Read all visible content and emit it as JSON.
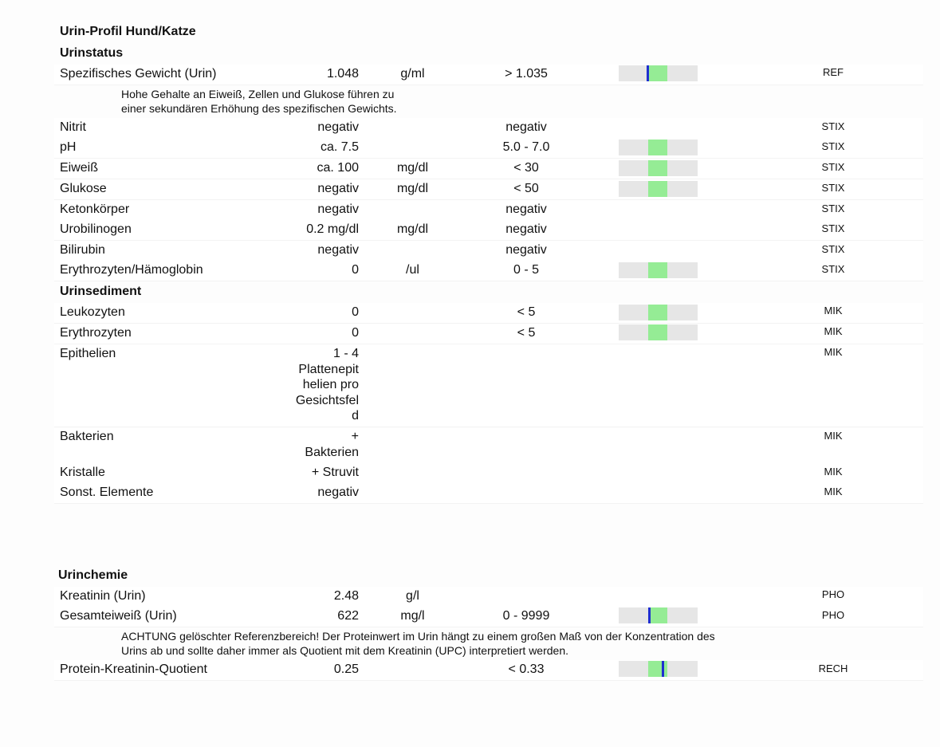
{
  "title": "Urin-Profil Hund/Katze",
  "sections": {
    "urinstatus": "Urinstatus",
    "urinsediment": "Urinsediment",
    "urinchemie": "Urinchemie"
  },
  "rows": {
    "sg": {
      "name": "Spezifisches Gewicht (Urin)",
      "value": "1.048",
      "unit": "g/ml",
      "ref": "> 1.035",
      "method": "REF"
    },
    "nitrit": {
      "name": "Nitrit",
      "value": "negativ",
      "unit": "",
      "ref": "negativ",
      "method": "STIX"
    },
    "ph": {
      "name": "pH",
      "value": "ca. 7.5",
      "unit": "",
      "ref": "5.0 - 7.0",
      "method": "STIX"
    },
    "eiweiss": {
      "name": "Eiweiß",
      "value": "ca. 100",
      "unit": "mg/dl",
      "ref": "< 30",
      "method": "STIX"
    },
    "glukose": {
      "name": "Glukose",
      "value": "negativ",
      "unit": "mg/dl",
      "ref": "< 50",
      "method": "STIX"
    },
    "keton": {
      "name": "Ketonkörper",
      "value": "negativ",
      "unit": "",
      "ref": "negativ",
      "method": "STIX"
    },
    "urobil": {
      "name": "Urobilinogen",
      "value": "0.2 mg/dl",
      "unit": "mg/dl",
      "ref": "negativ",
      "method": "STIX"
    },
    "bili": {
      "name": "Bilirubin",
      "value": "negativ",
      "unit": "",
      "ref": "negativ",
      "method": "STIX"
    },
    "ery_hb": {
      "name": "Erythrozyten/Hämoglobin",
      "value": "0",
      "unit": "/ul",
      "ref": "0 - 5",
      "method": "STIX"
    },
    "leuko": {
      "name": "Leukozyten",
      "value": "0",
      "unit": "",
      "ref": "< 5",
      "method": "MIK"
    },
    "ery": {
      "name": "Erythrozyten",
      "value": "0",
      "unit": "",
      "ref": "< 5",
      "method": "MIK"
    },
    "epi": {
      "name": "Epithelien",
      "value_lines": [
        "1 - 4",
        "Plattenepit",
        "helien pro",
        "Gesichtsfel",
        "d"
      ],
      "method": "MIK"
    },
    "bakt": {
      "name": "Bakterien",
      "value_lines": [
        "+",
        "Bakterien"
      ],
      "method": "MIK"
    },
    "krist": {
      "name": "Kristalle",
      "value": "+ Struvit",
      "method": "MIK"
    },
    "sonst": {
      "name": "Sonst. Elemente",
      "value": "negativ",
      "method": "MIK"
    },
    "krea": {
      "name": "Kreatinin (Urin)",
      "value": "2.48",
      "unit": "g/l",
      "ref": "",
      "method": "PHO"
    },
    "gesamt": {
      "name": "Gesamteiweiß (Urin)",
      "value": "622",
      "unit": "mg/l",
      "ref": "0 - 9999",
      "method": "PHO"
    },
    "upc": {
      "name": "Protein-Kreatinin-Quotient",
      "value": "0.25",
      "unit": "",
      "ref": "< 0.33",
      "method": "RECH"
    }
  },
  "notes": {
    "sg_1": "Hohe Gehalte an Eiweiß, Zellen und Glukose führen zu",
    "sg_2": "einer sekundären Erhöhung des spezifischen Gewichts.",
    "ge_1": "ACHTUNG gelöschter Referenzbereich! Der Proteinwert im Urin hängt zu einem großen Maß von der Konzentration des",
    "ge_2": "Urins ab und sollte daher immer als Quotient mit dem Kreatinin (UPC) interpretiert werden."
  },
  "colors": {
    "normal_range": "#95ec95",
    "marker": "#1f2fd0",
    "bar_bg": "#e6e6e6"
  }
}
